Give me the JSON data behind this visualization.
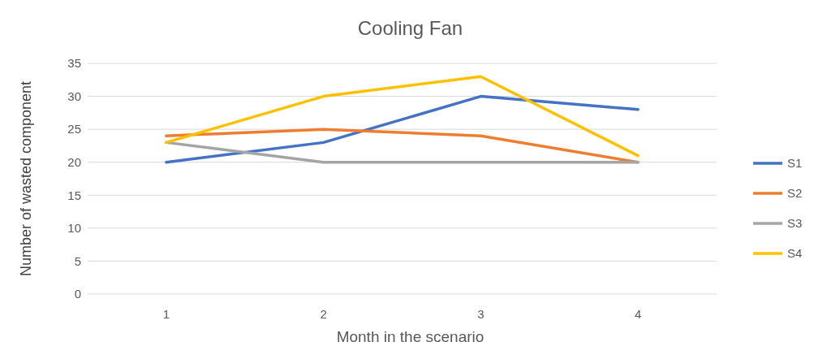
{
  "chart_data": {
    "type": "line",
    "title": "Cooling Fan",
    "xlabel": "Month in the scenario",
    "ylabel": "Number of wasted component",
    "categories": [
      "1",
      "2",
      "3",
      "4"
    ],
    "series": [
      {
        "name": "S1",
        "color": "#4472c4",
        "values": [
          20,
          23,
          30,
          28
        ]
      },
      {
        "name": "S2",
        "color": "#ed7d31",
        "values": [
          24,
          25,
          24,
          20
        ]
      },
      {
        "name": "S3",
        "color": "#a5a5a5",
        "values": [
          23,
          20,
          20,
          20
        ]
      },
      {
        "name": "S4",
        "color": "#ffc000",
        "values": [
          23,
          30,
          33,
          21
        ]
      }
    ],
    "ylim": [
      0,
      35
    ],
    "yticks": [
      0,
      5,
      10,
      15,
      20,
      25,
      30,
      35
    ],
    "grid": "y",
    "legend": "right",
    "marker": "none",
    "line_style": "solid"
  }
}
